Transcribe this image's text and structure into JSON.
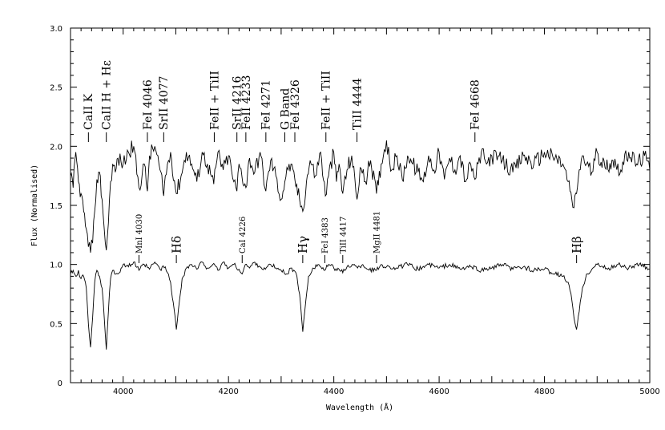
{
  "chart_data": {
    "type": "line",
    "title": "",
    "xlabel": "Wavelength (Å)",
    "ylabel": "Flux (Normalised)",
    "xlim": [
      3900,
      5000
    ],
    "ylim": [
      0,
      3.0
    ],
    "x_ticks": [
      {
        "value": 4000,
        "label": "4000"
      },
      {
        "value": 4200,
        "label": "4200"
      },
      {
        "value": 4400,
        "label": "4400"
      },
      {
        "value": 4600,
        "label": "4600"
      },
      {
        "value": 4800,
        "label": "4800"
      },
      {
        "value": 5000,
        "label": "5000"
      }
    ],
    "y_ticks": [
      {
        "value": 0,
        "label": "0"
      },
      {
        "value": 0.5,
        "label": "0.5"
      },
      {
        "value": 1.0,
        "label": "1.0"
      },
      {
        "value": 1.5,
        "label": "1.5"
      },
      {
        "value": 2.0,
        "label": "2.0"
      },
      {
        "value": 2.5,
        "label": "2.5"
      },
      {
        "value": 3.0,
        "label": "3.0"
      }
    ],
    "grid": false,
    "legend": "none",
    "series": [
      {
        "level": 1.9,
        "x": [
          3900,
          3905,
          3910,
          3915,
          3920,
          3925,
          3930,
          3934,
          3938,
          3942,
          3946,
          3950,
          3955,
          3960,
          3964,
          3968,
          3972,
          3976,
          3980,
          3985,
          3990,
          4000,
          4010,
          4020,
          4030,
          4040,
          4046,
          4050,
          4060,
          4070,
          4077,
          4080,
          4090,
          4101,
          4110,
          4120,
          4130,
          4140,
          4150,
          4160,
          4172,
          4180,
          4190,
          4200,
          4210,
          4216,
          4220,
          4233,
          4240,
          4250,
          4260,
          4271,
          4280,
          4290,
          4300,
          4307,
          4315,
          4326,
          4335,
          4341,
          4348,
          4355,
          4365,
          4375,
          4384,
          4390,
          4400,
          4405,
          4410,
          4417,
          4425,
          4434,
          4444,
          4450,
          4460,
          4470,
          4481,
          4490,
          4500,
          4510,
          4520,
          4530,
          4540,
          4550,
          4560,
          4570,
          4580,
          4590,
          4600,
          4610,
          4620,
          4630,
          4640,
          4650,
          4660,
          4668,
          4680,
          4690,
          4700,
          4720,
          4740,
          4760,
          4780,
          4800,
          4820,
          4835,
          4845,
          4852,
          4856,
          4861,
          4866,
          4872,
          4880,
          4890,
          4900,
          4915,
          4930,
          4945,
          4960,
          4975,
          4990,
          5000
        ],
        "y": [
          1.75,
          1.65,
          1.95,
          1.7,
          1.6,
          1.45,
          1.3,
          1.15,
          1.1,
          1.18,
          1.45,
          1.72,
          1.78,
          1.55,
          1.3,
          1.12,
          1.35,
          1.7,
          1.85,
          1.78,
          1.9,
          1.85,
          1.95,
          2.0,
          1.65,
          1.85,
          1.62,
          1.92,
          2.0,
          1.8,
          1.58,
          1.75,
          1.95,
          1.6,
          1.75,
          1.95,
          1.85,
          1.7,
          1.95,
          1.85,
          1.68,
          1.95,
          1.8,
          1.92,
          1.7,
          1.62,
          1.85,
          1.65,
          1.9,
          1.78,
          1.95,
          1.62,
          1.88,
          1.75,
          1.55,
          1.7,
          1.85,
          1.72,
          1.55,
          1.45,
          1.7,
          1.88,
          1.75,
          1.95,
          1.58,
          1.75,
          1.95,
          1.7,
          1.85,
          1.6,
          1.8,
          1.92,
          1.55,
          1.82,
          1.7,
          1.88,
          1.6,
          1.85,
          2.05,
          1.8,
          1.92,
          1.72,
          1.92,
          1.85,
          1.78,
          1.7,
          1.92,
          1.8,
          1.95,
          1.72,
          1.9,
          1.8,
          1.92,
          1.7,
          1.85,
          1.72,
          1.95,
          1.85,
          1.92,
          1.88,
          1.78,
          1.92,
          1.85,
          1.95,
          1.9,
          1.85,
          1.7,
          1.55,
          1.48,
          1.6,
          1.8,
          1.92,
          1.85,
          1.78,
          1.95,
          1.82,
          1.88,
          1.8,
          1.95,
          1.85,
          1.92,
          1.8
        ]
      },
      {
        "level": 1.0,
        "x": [
          3900,
          3905,
          3910,
          3915,
          3920,
          3925,
          3930,
          3934,
          3938,
          3942,
          3946,
          3950,
          3955,
          3960,
          3964,
          3968,
          3972,
          3976,
          3980,
          3990,
          4000,
          4010,
          4020,
          4030,
          4040,
          4050,
          4060,
          4070,
          4080,
          4090,
          4095,
          4101,
          4107,
          4112,
          4120,
          4130,
          4140,
          4150,
          4160,
          4170,
          4180,
          4190,
          4200,
          4210,
          4220,
          4226,
          4232,
          4240,
          4250,
          4260,
          4270,
          4280,
          4290,
          4300,
          4310,
          4320,
          4330,
          4335,
          4341,
          4347,
          4352,
          4360,
          4370,
          4383,
          4390,
          4400,
          4410,
          4417,
          4425,
          4435,
          4445,
          4455,
          4465,
          4481,
          4490,
          4500,
          4520,
          4540,
          4560,
          4580,
          4600,
          4620,
          4640,
          4660,
          4680,
          4700,
          4720,
          4740,
          4760,
          4780,
          4800,
          4820,
          4835,
          4845,
          4852,
          4856,
          4861,
          4866,
          4872,
          4880,
          4890,
          4900,
          4920,
          4940,
          4960,
          4980,
          5000
        ],
        "y": [
          0.92,
          0.95,
          0.9,
          0.95,
          0.88,
          0.9,
          0.8,
          0.5,
          0.3,
          0.55,
          0.85,
          0.95,
          0.9,
          0.8,
          0.55,
          0.28,
          0.6,
          0.88,
          0.95,
          0.92,
          1.0,
          0.98,
          1.02,
          0.95,
          1.0,
          0.96,
          1.02,
          0.96,
          0.98,
          0.85,
          0.68,
          0.45,
          0.7,
          0.88,
          0.97,
          1.0,
          0.96,
          1.02,
          0.97,
          1.0,
          0.95,
          1.02,
          0.97,
          1.0,
          0.96,
          0.92,
          1.0,
          0.97,
          1.02,
          0.98,
          0.96,
          1.0,
          0.97,
          0.95,
          0.92,
          0.97,
          0.9,
          0.75,
          0.43,
          0.7,
          0.9,
          0.97,
          1.0,
          0.95,
          1.0,
          0.97,
          0.96,
          0.93,
          0.98,
          1.0,
          0.97,
          1.0,
          0.96,
          0.95,
          1.0,
          0.98,
          0.97,
          1.0,
          0.96,
          1.0,
          0.97,
          1.0,
          0.96,
          0.98,
          0.95,
          0.97,
          1.0,
          0.96,
          0.98,
          0.95,
          0.96,
          0.92,
          0.9,
          0.85,
          0.7,
          0.55,
          0.45,
          0.6,
          0.8,
          0.92,
          0.96,
          1.0,
          0.96,
          1.0,
          0.97,
          1.0,
          0.96
        ]
      }
    ],
    "annotations_upper": [
      {
        "label": "CaII  K",
        "x": 3934,
        "size": 14
      },
      {
        "label": "CaII  H  +  Hε",
        "x": 3968,
        "size": 14
      },
      {
        "label": "FeI  4046",
        "x": 4046,
        "size": 14
      },
      {
        "label": "SrII  4077",
        "x": 4077,
        "size": 14
      },
      {
        "label": "FeII  +  TiII",
        "x": 4173,
        "size": 14
      },
      {
        "label": "SrII  4216",
        "x": 4216,
        "size": 14
      },
      {
        "label": "FeII  4233",
        "x": 4233,
        "size": 14
      },
      {
        "label": "FeI  4271",
        "x": 4271,
        "size": 14
      },
      {
        "label": "G  Band",
        "x": 4307,
        "size": 14
      },
      {
        "label": "FeI  4326",
        "x": 4326,
        "size": 14
      },
      {
        "label": "FeII  +  TiII",
        "x": 4385,
        "size": 14
      },
      {
        "label": "TiII  4444",
        "x": 4444,
        "size": 14
      },
      {
        "label": "FeI  4668",
        "x": 4668,
        "size": 14
      }
    ],
    "annotations_lower": [
      {
        "label": "MnI  4030",
        "x": 4030,
        "size": 10
      },
      {
        "label": "Hδ",
        "x": 4101,
        "size": 15
      },
      {
        "label": "CaI  4226",
        "x": 4226,
        "size": 10
      },
      {
        "label": "Hγ",
        "x": 4341,
        "size": 15
      },
      {
        "label": "FeI  4383",
        "x": 4383,
        "size": 10
      },
      {
        "label": "TiII  4417",
        "x": 4417,
        "size": 10
      },
      {
        "label": "MgII  4481",
        "x": 4481,
        "size": 10
      },
      {
        "label": "Hβ",
        "x": 4861,
        "size": 15
      }
    ]
  }
}
